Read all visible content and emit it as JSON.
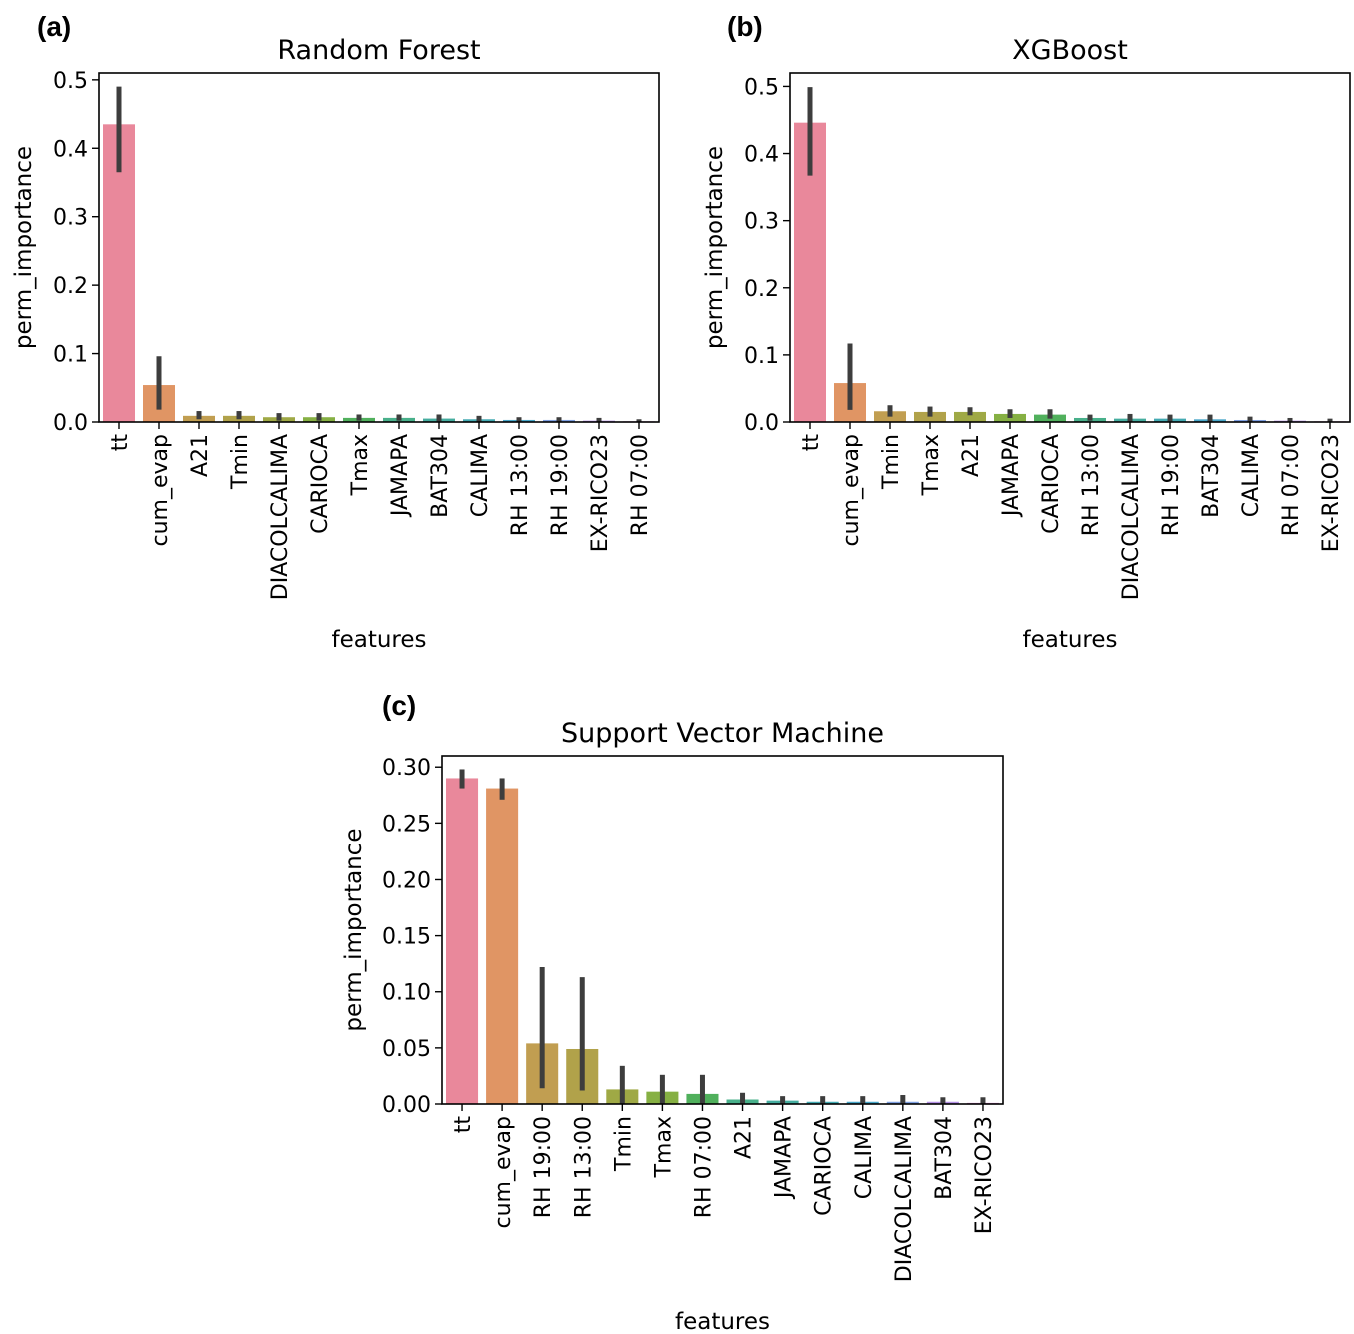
{
  "chart_data": [
    {
      "type": "bar",
      "panel": "(a)",
      "title": "Random Forest",
      "xlabel": "features",
      "ylabel": "perm_importance",
      "ylim": [
        0,
        0.51
      ],
      "yticks": [
        0.0,
        0.1,
        0.2,
        0.3,
        0.4,
        0.5
      ],
      "ytick_labels": [
        "0.0",
        "0.1",
        "0.2",
        "0.3",
        "0.4",
        "0.5"
      ],
      "categories": [
        "tt",
        "cum_evap",
        "A21",
        "Tmin",
        "DIACOLCALIMA",
        "CARIOCA",
        "Tmax",
        "JAMAPA",
        "BAT304",
        "CALIMA",
        "RH 13:00",
        "RH 19:00",
        "EX-RICO23",
        "RH 07:00"
      ],
      "values": [
        0.435,
        0.054,
        0.009,
        0.009,
        0.007,
        0.007,
        0.006,
        0.006,
        0.005,
        0.004,
        0.003,
        0.003,
        0.002,
        0.001
      ],
      "error_low": [
        0.365,
        0.018,
        0.004,
        0.004,
        0.002,
        0.002,
        0.002,
        0.002,
        0.001,
        0.0,
        0.0,
        0.0,
        0.0,
        0.0
      ],
      "error_high": [
        0.49,
        0.096,
        0.016,
        0.016,
        0.013,
        0.013,
        0.011,
        0.011,
        0.011,
        0.009,
        0.007,
        0.007,
        0.006,
        0.004
      ],
      "bar_colors": [
        "#e9889b",
        "#e09564",
        "#c19e51",
        "#b1a24a",
        "#9fa945",
        "#86b043",
        "#50b05c",
        "#48b08a",
        "#45ad9f",
        "#43aab2",
        "#48a6c8",
        "#7e9fe0",
        "#b490e5",
        "#df87d4"
      ]
    },
    {
      "type": "bar",
      "panel": "(b)",
      "title": "XGBoost",
      "xlabel": "features",
      "ylabel": "perm_importance",
      "ylim": [
        0,
        0.52
      ],
      "yticks": [
        0.0,
        0.1,
        0.2,
        0.3,
        0.4,
        0.5
      ],
      "ytick_labels": [
        "0.0",
        "0.1",
        "0.2",
        "0.3",
        "0.4",
        "0.5"
      ],
      "categories": [
        "tt",
        "cum_evap",
        "Tmin",
        "Tmax",
        "A21",
        "JAMAPA",
        "CARIOCA",
        "RH 13:00",
        "DIACOLCALIMA",
        "RH 19:00",
        "BAT304",
        "CALIMA",
        "RH 07:00",
        "EX-RICO23"
      ],
      "values": [
        0.446,
        0.058,
        0.016,
        0.015,
        0.015,
        0.012,
        0.011,
        0.006,
        0.005,
        0.005,
        0.004,
        0.003,
        0.002,
        0.001
      ],
      "error_low": [
        0.367,
        0.018,
        0.008,
        0.008,
        0.01,
        0.006,
        0.005,
        0.002,
        0.0,
        0.001,
        0.0,
        0.0,
        0.0,
        0.0
      ],
      "error_high": [
        0.499,
        0.117,
        0.025,
        0.023,
        0.022,
        0.019,
        0.019,
        0.011,
        0.012,
        0.011,
        0.011,
        0.008,
        0.006,
        0.005
      ],
      "bar_colors": [
        "#e9889b",
        "#e09564",
        "#c19e51",
        "#b1a24a",
        "#9fa945",
        "#86b043",
        "#50b05c",
        "#48b08a",
        "#45ad9f",
        "#43aab2",
        "#48a6c8",
        "#7e9fe0",
        "#b490e5",
        "#df87d4"
      ]
    },
    {
      "type": "bar",
      "panel": "(c)",
      "title": "Support Vector Machine",
      "xlabel": "features",
      "ylabel": "perm_importance",
      "ylim": [
        0,
        0.31
      ],
      "yticks": [
        0.0,
        0.05,
        0.1,
        0.15,
        0.2,
        0.25,
        0.3
      ],
      "ytick_labels": [
        "0.00",
        "0.05",
        "0.10",
        "0.15",
        "0.20",
        "0.25",
        "0.30"
      ],
      "categories": [
        "tt",
        "cum_evap",
        "RH 19:00",
        "RH 13:00",
        "Tmin",
        "Tmax",
        "RH 07:00",
        "A21",
        "JAMAPA",
        "CARIOCA",
        "CALIMA",
        "DIACOLCALIMA",
        "BAT304",
        "EX-RICO23"
      ],
      "values": [
        0.29,
        0.281,
        0.054,
        0.049,
        0.013,
        0.011,
        0.009,
        0.004,
        0.003,
        0.002,
        0.002,
        0.002,
        0.002,
        0.001
      ],
      "error_low": [
        0.281,
        0.271,
        0.014,
        0.012,
        0.0,
        0.0,
        0.0,
        0.0,
        0.0,
        0.0,
        0.0,
        0.0,
        0.0,
        0.0
      ],
      "error_high": [
        0.298,
        0.29,
        0.122,
        0.113,
        0.034,
        0.026,
        0.026,
        0.01,
        0.007,
        0.007,
        0.007,
        0.008,
        0.006,
        0.006
      ],
      "bar_colors": [
        "#e9889b",
        "#e09564",
        "#c19e51",
        "#b1a24a",
        "#9fa945",
        "#86b043",
        "#50b05c",
        "#48b08a",
        "#45ad9f",
        "#43aab2",
        "#48a6c8",
        "#7e9fe0",
        "#b490e5",
        "#df87d4"
      ]
    }
  ]
}
